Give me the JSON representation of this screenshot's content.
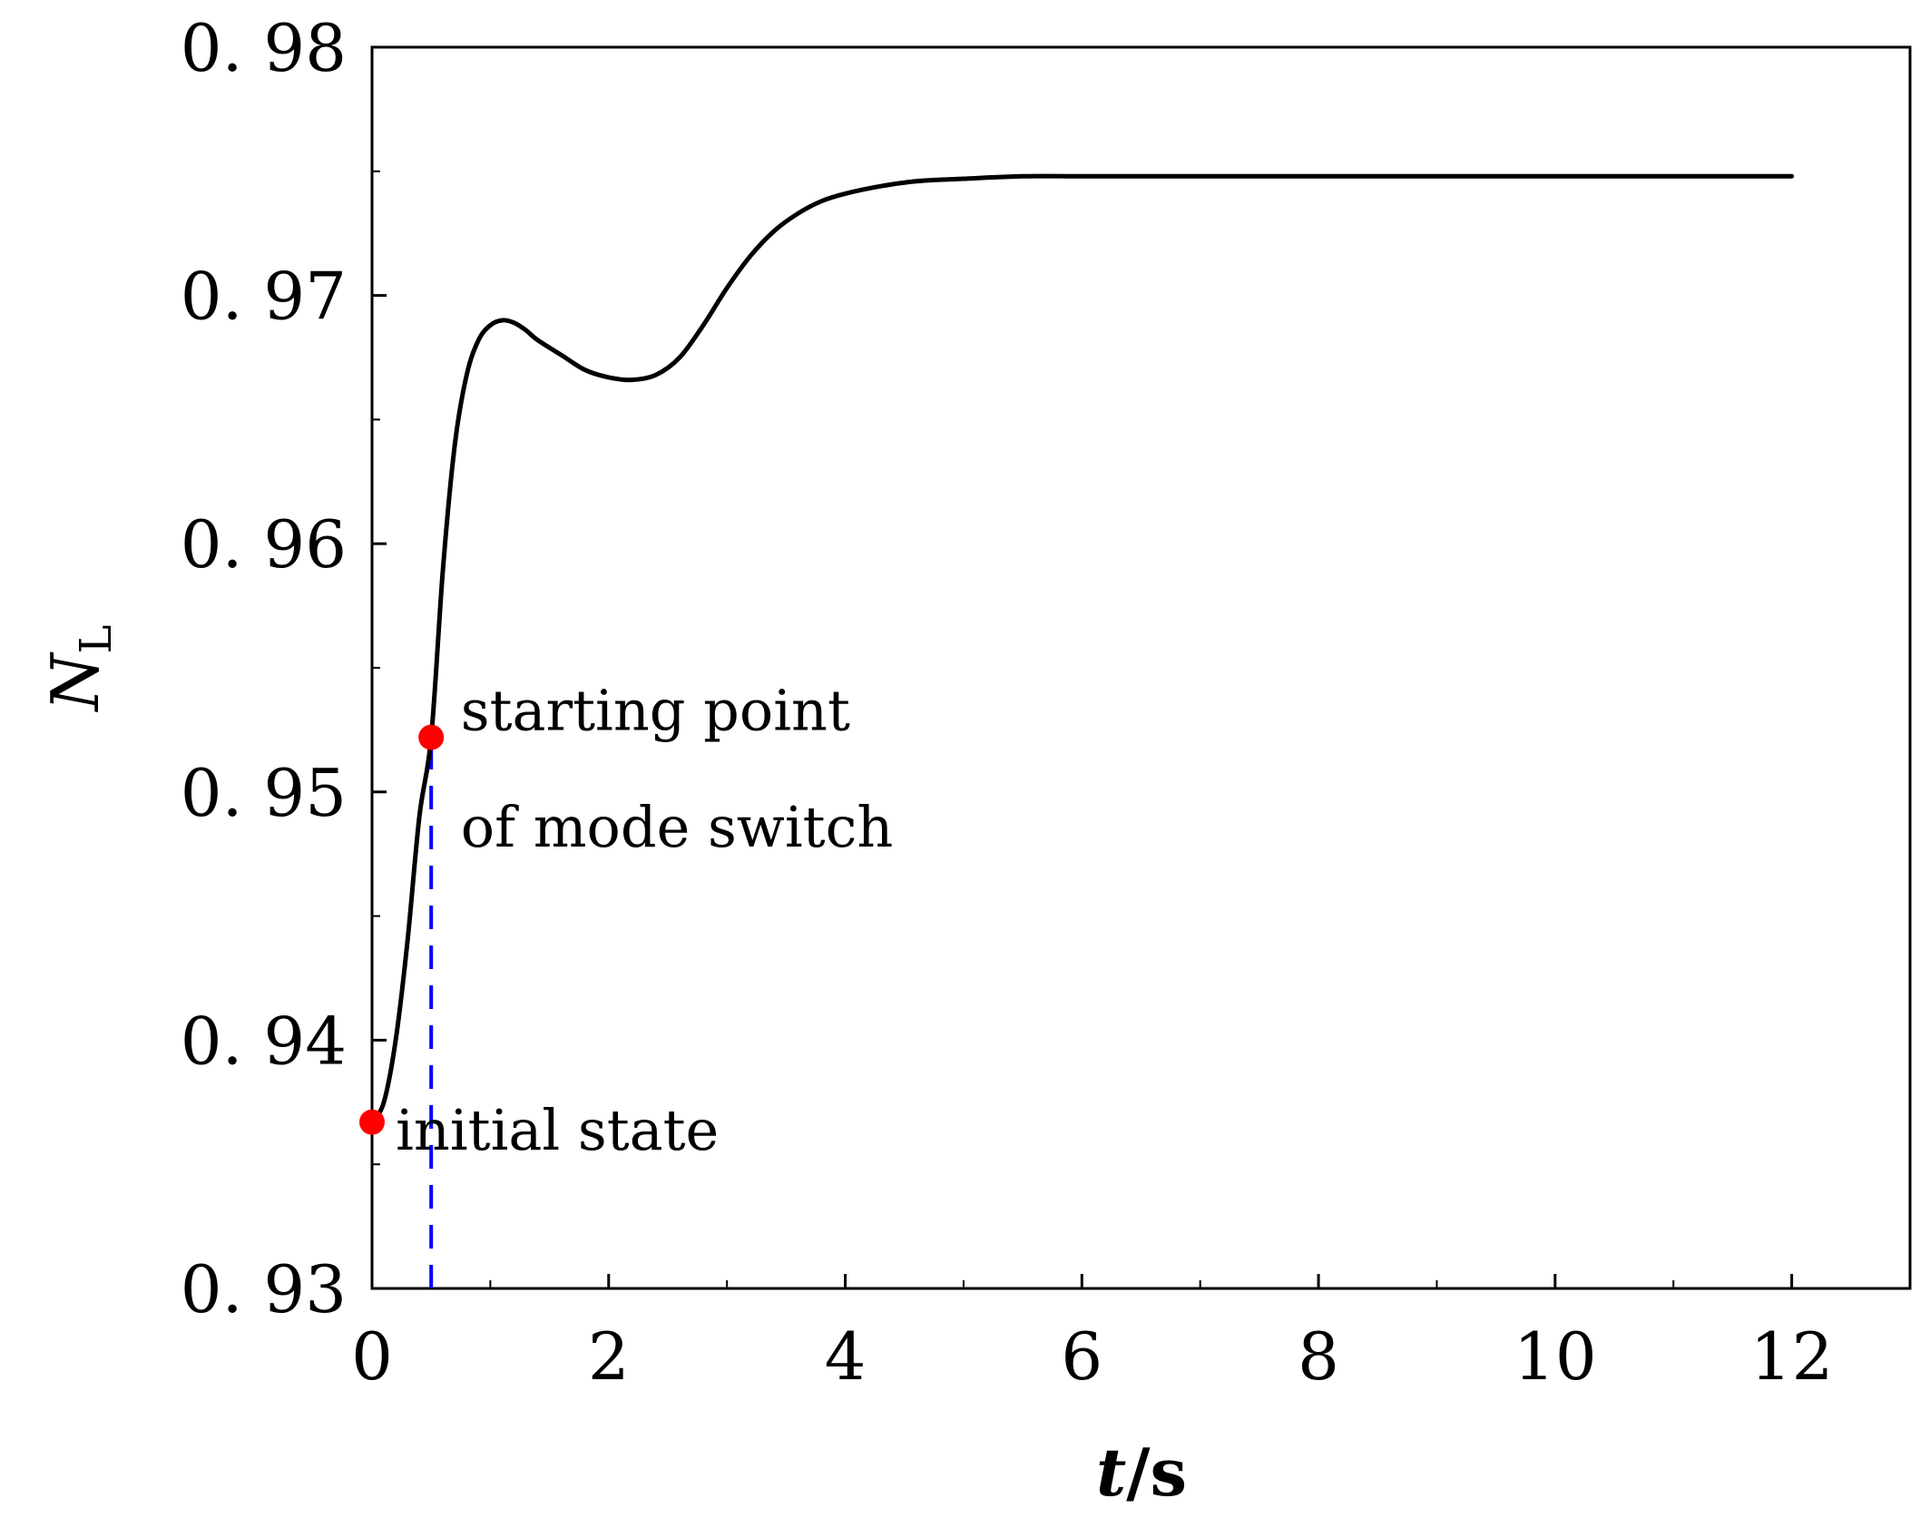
{
  "chart_data": {
    "type": "line",
    "title": "",
    "xlabel": {
      "italic": "t",
      "rest": "/s"
    },
    "ylabel": {
      "main": "N",
      "sub": "L"
    },
    "xlim": [
      0,
      13
    ],
    "ylim": [
      0.93,
      0.98
    ],
    "x_ticks": [
      0,
      2,
      4,
      6,
      8,
      10,
      12
    ],
    "x_tick_labels": [
      "0",
      "2",
      "4",
      "6",
      "8",
      "10",
      "12"
    ],
    "x_minor_ticks": [
      1,
      3,
      5,
      7,
      9,
      11,
      13
    ],
    "y_ticks": [
      0.93,
      0.94,
      0.95,
      0.96,
      0.97,
      0.98
    ],
    "y_tick_labels": [
      "0. 93",
      "0. 94",
      "0. 95",
      "0. 96",
      "0. 97",
      "0. 98"
    ],
    "y_minor_ticks": [
      0.935,
      0.945,
      0.955,
      0.965,
      0.975
    ],
    "grid": false,
    "legend": "none",
    "series": [
      {
        "color": "#000000",
        "x": [
          0.0,
          0.1,
          0.2,
          0.3,
          0.4,
          0.5,
          0.6,
          0.7,
          0.8,
          0.9,
          1.0,
          1.1,
          1.2,
          1.3,
          1.4,
          1.6,
          1.8,
          2.0,
          2.2,
          2.4,
          2.6,
          2.8,
          3.0,
          3.2,
          3.4,
          3.6,
          3.8,
          4.0,
          4.3,
          4.6,
          5.0,
          5.5,
          6.0,
          7.0,
          8.0,
          9.0,
          10.0,
          11.0,
          12.0
        ],
        "y": [
          0.9367,
          0.9375,
          0.94,
          0.944,
          0.949,
          0.9522,
          0.959,
          0.964,
          0.9668,
          0.9682,
          0.9688,
          0.969,
          0.9689,
          0.9686,
          0.9682,
          0.9676,
          0.967,
          0.9667,
          0.9666,
          0.9668,
          0.9675,
          0.9688,
          0.9703,
          0.9716,
          0.9726,
          0.9733,
          0.9738,
          0.9741,
          0.9744,
          0.9746,
          0.9747,
          0.9748,
          0.9748,
          0.9748,
          0.9748,
          0.9748,
          0.9748,
          0.9748,
          0.9748
        ]
      }
    ],
    "markers": [
      {
        "x": 0.0,
        "y": 0.9367,
        "color": "#ff0000"
      },
      {
        "x": 0.5,
        "y": 0.9522,
        "color": "#ff0000"
      }
    ],
    "vline": {
      "x": 0.5,
      "from": 0.93,
      "to": 0.9522,
      "color": "#0000ff",
      "style": "dashed"
    },
    "annotations": [
      {
        "text": "starting point",
        "x": 0.75,
        "y": 0.9525
      },
      {
        "text": "of mode switch",
        "x": 0.75,
        "y": 0.9478
      },
      {
        "text": "initial state",
        "x": 0.2,
        "y": 0.9356
      }
    ]
  }
}
